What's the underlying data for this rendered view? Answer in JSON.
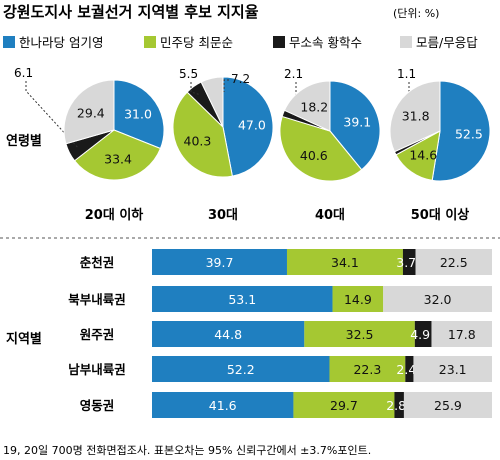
{
  "header": {
    "title": "강원도지사 보궐선거 지역별 후보 지지율",
    "unit": "(단위: %)"
  },
  "legend": [
    {
      "name": "한나라당 엄기영",
      "color": "#1f7fc0"
    },
    {
      "name": "민주당 최문순",
      "color": "#a5c832"
    },
    {
      "name": "무소속 황학수",
      "color": "#1a1a1a"
    },
    {
      "name": "모름/무응답",
      "color": "#d8d8d8"
    }
  ],
  "footnote": "19, 20일 700명 전화면접조사. 표본오차는 95% 신뢰구간에서 ±3.7%포인트.",
  "chart_data": [
    {
      "type": "pie",
      "group_label": "연령별",
      "series_names": [
        "한나라당 엄기영",
        "민주당 최문순",
        "무소속 황학수",
        "모름/무응답"
      ],
      "pies": [
        {
          "label": "20대 이하",
          "values": [
            31.0,
            33.4,
            6.1,
            29.4
          ],
          "labels": [
            "31.0",
            "33.4",
            "6.1",
            "29.4"
          ]
        },
        {
          "label": "30대",
          "values": [
            47.0,
            40.3,
            5.5,
            7.2
          ],
          "labels": [
            "47.0",
            "40.3",
            "5.5",
            "7.2"
          ]
        },
        {
          "label": "40대",
          "values": [
            39.1,
            40.6,
            2.1,
            18.2
          ],
          "labels": [
            "39.1",
            "40.6",
            "2.1",
            "18.2"
          ]
        },
        {
          "label": "50대 이상",
          "values": [
            52.5,
            14.6,
            1.1,
            31.8
          ],
          "labels": [
            "52.5",
            "14.6",
            "1.1",
            "31.8"
          ]
        }
      ]
    },
    {
      "type": "bar",
      "stacked": true,
      "orientation": "horizontal",
      "group_label": "지역별",
      "categories": [
        "춘천권",
        "북부내륙권",
        "원주권",
        "남부내륙권",
        "영동권"
      ],
      "series": [
        {
          "name": "한나라당 엄기영",
          "values": [
            39.7,
            53.1,
            44.8,
            52.2,
            41.6
          ],
          "labels": [
            "39.7",
            "53.1",
            "44.8",
            "52.2",
            "41.6"
          ]
        },
        {
          "name": "민주당 최문순",
          "values": [
            34.1,
            14.9,
            32.5,
            22.3,
            29.7
          ],
          "labels": [
            "34.1",
            "14.9",
            "32.5",
            "22.3",
            "29.7"
          ]
        },
        {
          "name": "무소속 황학수",
          "values": [
            3.7,
            0,
            4.9,
            2.4,
            2.8
          ],
          "labels": [
            "3.7",
            "",
            "4.9",
            "2.4",
            "2.8"
          ]
        },
        {
          "name": "모름/무응답",
          "values": [
            22.5,
            32.0,
            17.8,
            23.1,
            25.9
          ],
          "labels": [
            "22.5",
            "32.0",
            "17.8",
            "23.1",
            "25.9"
          ]
        }
      ]
    }
  ]
}
